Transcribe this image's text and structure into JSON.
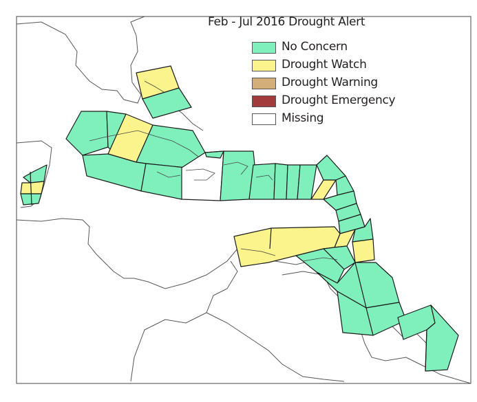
{
  "title": "Feb - Jul 2016 Drought Alert",
  "legend": [
    {
      "label": "No Concern",
      "color": "#7ff0bc"
    },
    {
      "label": "Drought Watch",
      "color": "#fbf38b"
    },
    {
      "label": "Drought Warning",
      "color": "#d4ae79"
    },
    {
      "label": "Drought Emergency",
      "color": "#a23b3b"
    },
    {
      "label": "Missing",
      "color": "#ffffff"
    }
  ],
  "colors": {
    "no_concern": "#7ff0bc",
    "drought_watch": "#fbf38b",
    "missing": "#ffffff",
    "region_border": "#1a1a1a",
    "coastline": "#555555"
  }
}
